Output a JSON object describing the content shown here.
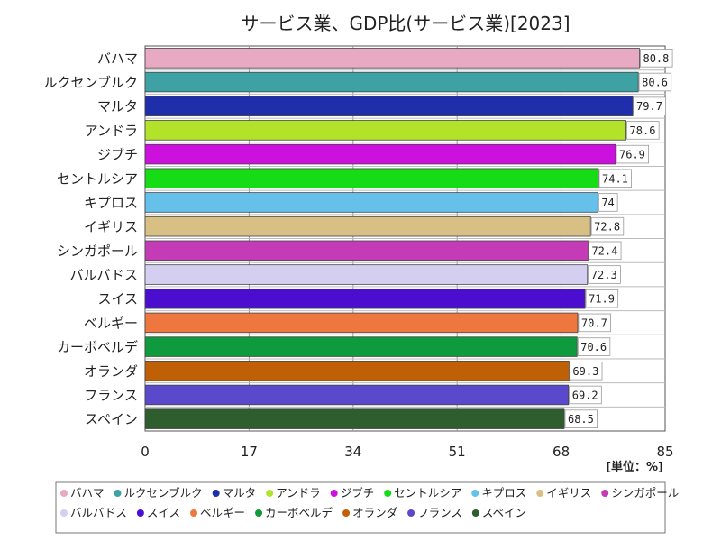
{
  "chart_data": {
    "type": "bar",
    "orientation": "horizontal",
    "title": "サービス業、GDP比(サービス業)[2023]",
    "unit_label": "[単位：%]",
    "xlim": [
      0,
      85
    ],
    "ticks": [
      0,
      17,
      34,
      51,
      68,
      85
    ],
    "grid": true,
    "legend": "bottom",
    "categories": [
      "バハマ",
      "ルクセンブルク",
      "マルタ",
      "アンドラ",
      "ジブチ",
      "セントルシア",
      "キプロス",
      "イギリス",
      "シンガポール",
      "バルバドス",
      "スイス",
      "ベルギー",
      "カーボベルデ",
      "オランダ",
      "フランス",
      "スペイン"
    ],
    "values": [
      80.8,
      80.6,
      79.7,
      78.6,
      76.9,
      74.1,
      74,
      72.8,
      72.4,
      72.3,
      71.9,
      70.7,
      70.6,
      69.3,
      69.2,
      68.5
    ],
    "value_labels": [
      "80.8",
      "80.6",
      "79.7",
      "78.6",
      "76.9",
      "74.1",
      "74",
      "72.8",
      "72.4",
      "72.3",
      "71.9",
      "70.7",
      "70.6",
      "69.3",
      "69.2",
      "68.5"
    ],
    "colors": [
      "#e8a9c2",
      "#3ea2a5",
      "#1f2eaa",
      "#b3e22a",
      "#cc10dd",
      "#15dc15",
      "#66c1ea",
      "#d8bf84",
      "#c33cb6",
      "#d4cef0",
      "#4b0dd0",
      "#ee7740",
      "#0f9a3d",
      "#bf5f06",
      "#5b49cc",
      "#2e5e2e"
    ]
  }
}
